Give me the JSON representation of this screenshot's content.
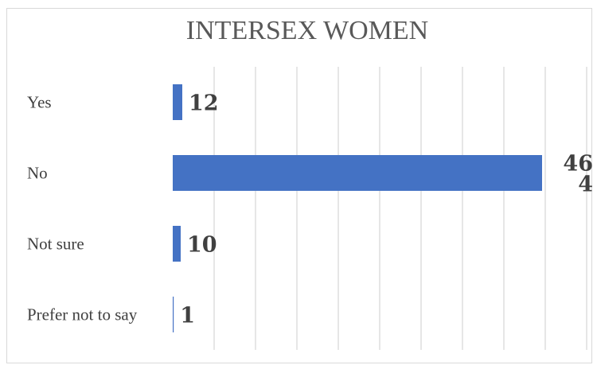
{
  "chart_data": {
    "type": "bar",
    "orientation": "horizontal",
    "title": "INTERSEX WOMEN",
    "categories": [
      "Yes",
      "No",
      "Not sure",
      "Prefer not to say"
    ],
    "values": [
      12,
      464,
      10,
      1
    ],
    "value_labels": [
      [
        "12"
      ],
      [
        "46",
        "4"
      ],
      [
        "10"
      ],
      [
        "1"
      ]
    ],
    "xlim": [
      0,
      520
    ],
    "grid": true,
    "legend": "none",
    "colors": {
      "bar": "#4472c4",
      "grid": "#d9d9d9",
      "text": "#404040",
      "title": "#595959"
    }
  }
}
